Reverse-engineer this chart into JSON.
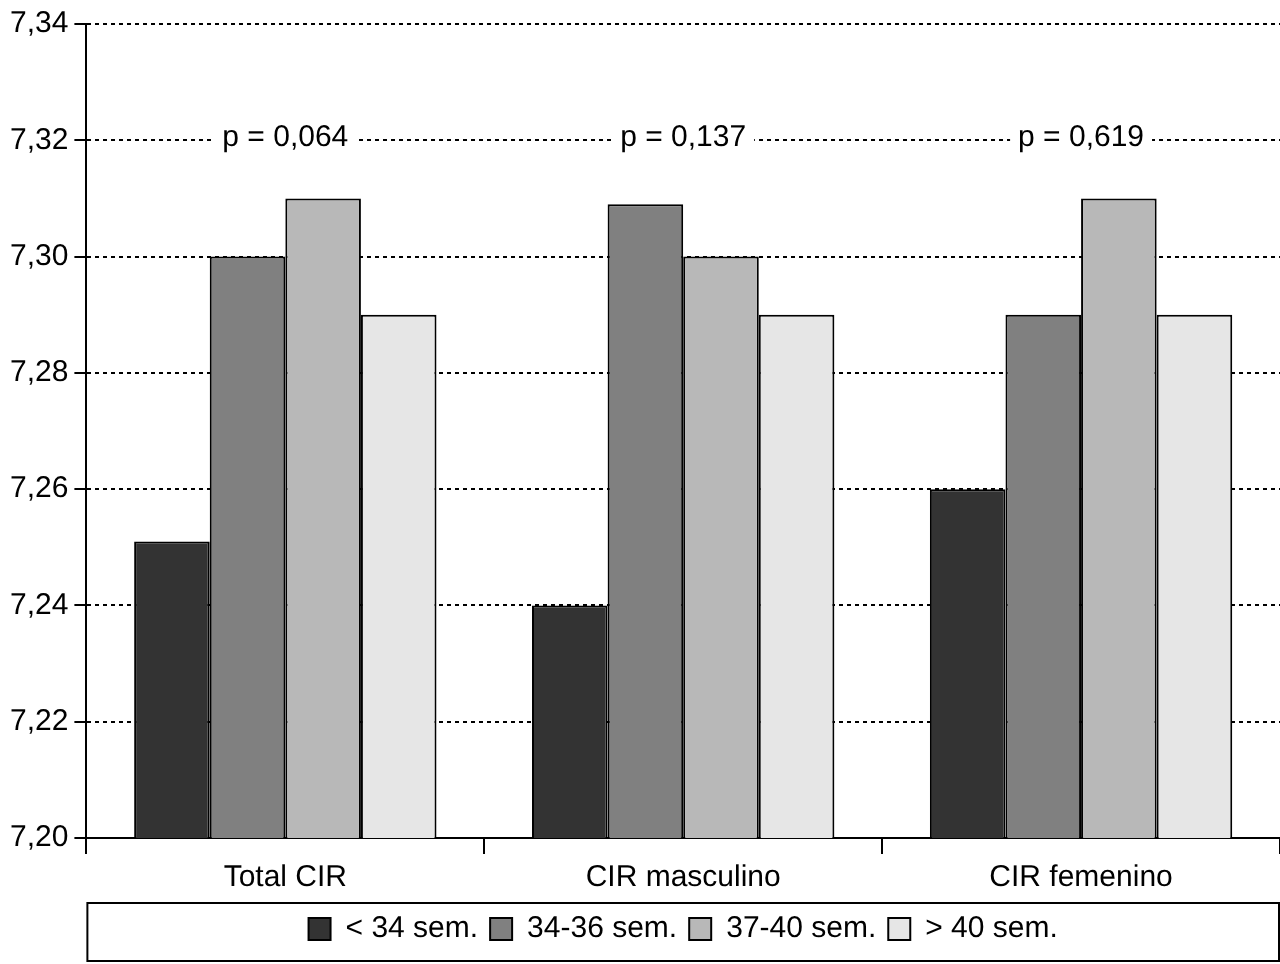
{
  "chart_data": {
    "type": "bar",
    "categories": [
      "Total CIR",
      "CIR masculino",
      "CIR femenino"
    ],
    "series": [
      {
        "name": "< 34 sem.",
        "color": "#333333",
        "values": [
          7.251,
          7.24,
          7.26
        ]
      },
      {
        "name": "34-36 sem.",
        "color": "#808080",
        "values": [
          7.3,
          7.309,
          7.29
        ]
      },
      {
        "name": "37-40 sem.",
        "color": "#b8b8b8",
        "values": [
          7.31,
          7.3,
          7.31
        ]
      },
      {
        "name": "> 40 sem.",
        "color": "#e6e6e6",
        "values": [
          7.29,
          7.29,
          7.29
        ]
      }
    ],
    "ylim": [
      7.2,
      7.34
    ],
    "yticks": [
      {
        "value": 7.2,
        "label": "7,20"
      },
      {
        "value": 7.22,
        "label": "7,22"
      },
      {
        "value": 7.24,
        "label": "7,24"
      },
      {
        "value": 7.26,
        "label": "7,26"
      },
      {
        "value": 7.28,
        "label": "7,28"
      },
      {
        "value": 7.3,
        "label": "7,30"
      },
      {
        "value": 7.32,
        "label": "7,32"
      },
      {
        "value": 7.34,
        "label": "7,34"
      }
    ],
    "grid": "y",
    "legend": "bottom",
    "annotations": [
      "p = 0,064",
      "p = 0,137",
      "p = 0,619"
    ]
  }
}
